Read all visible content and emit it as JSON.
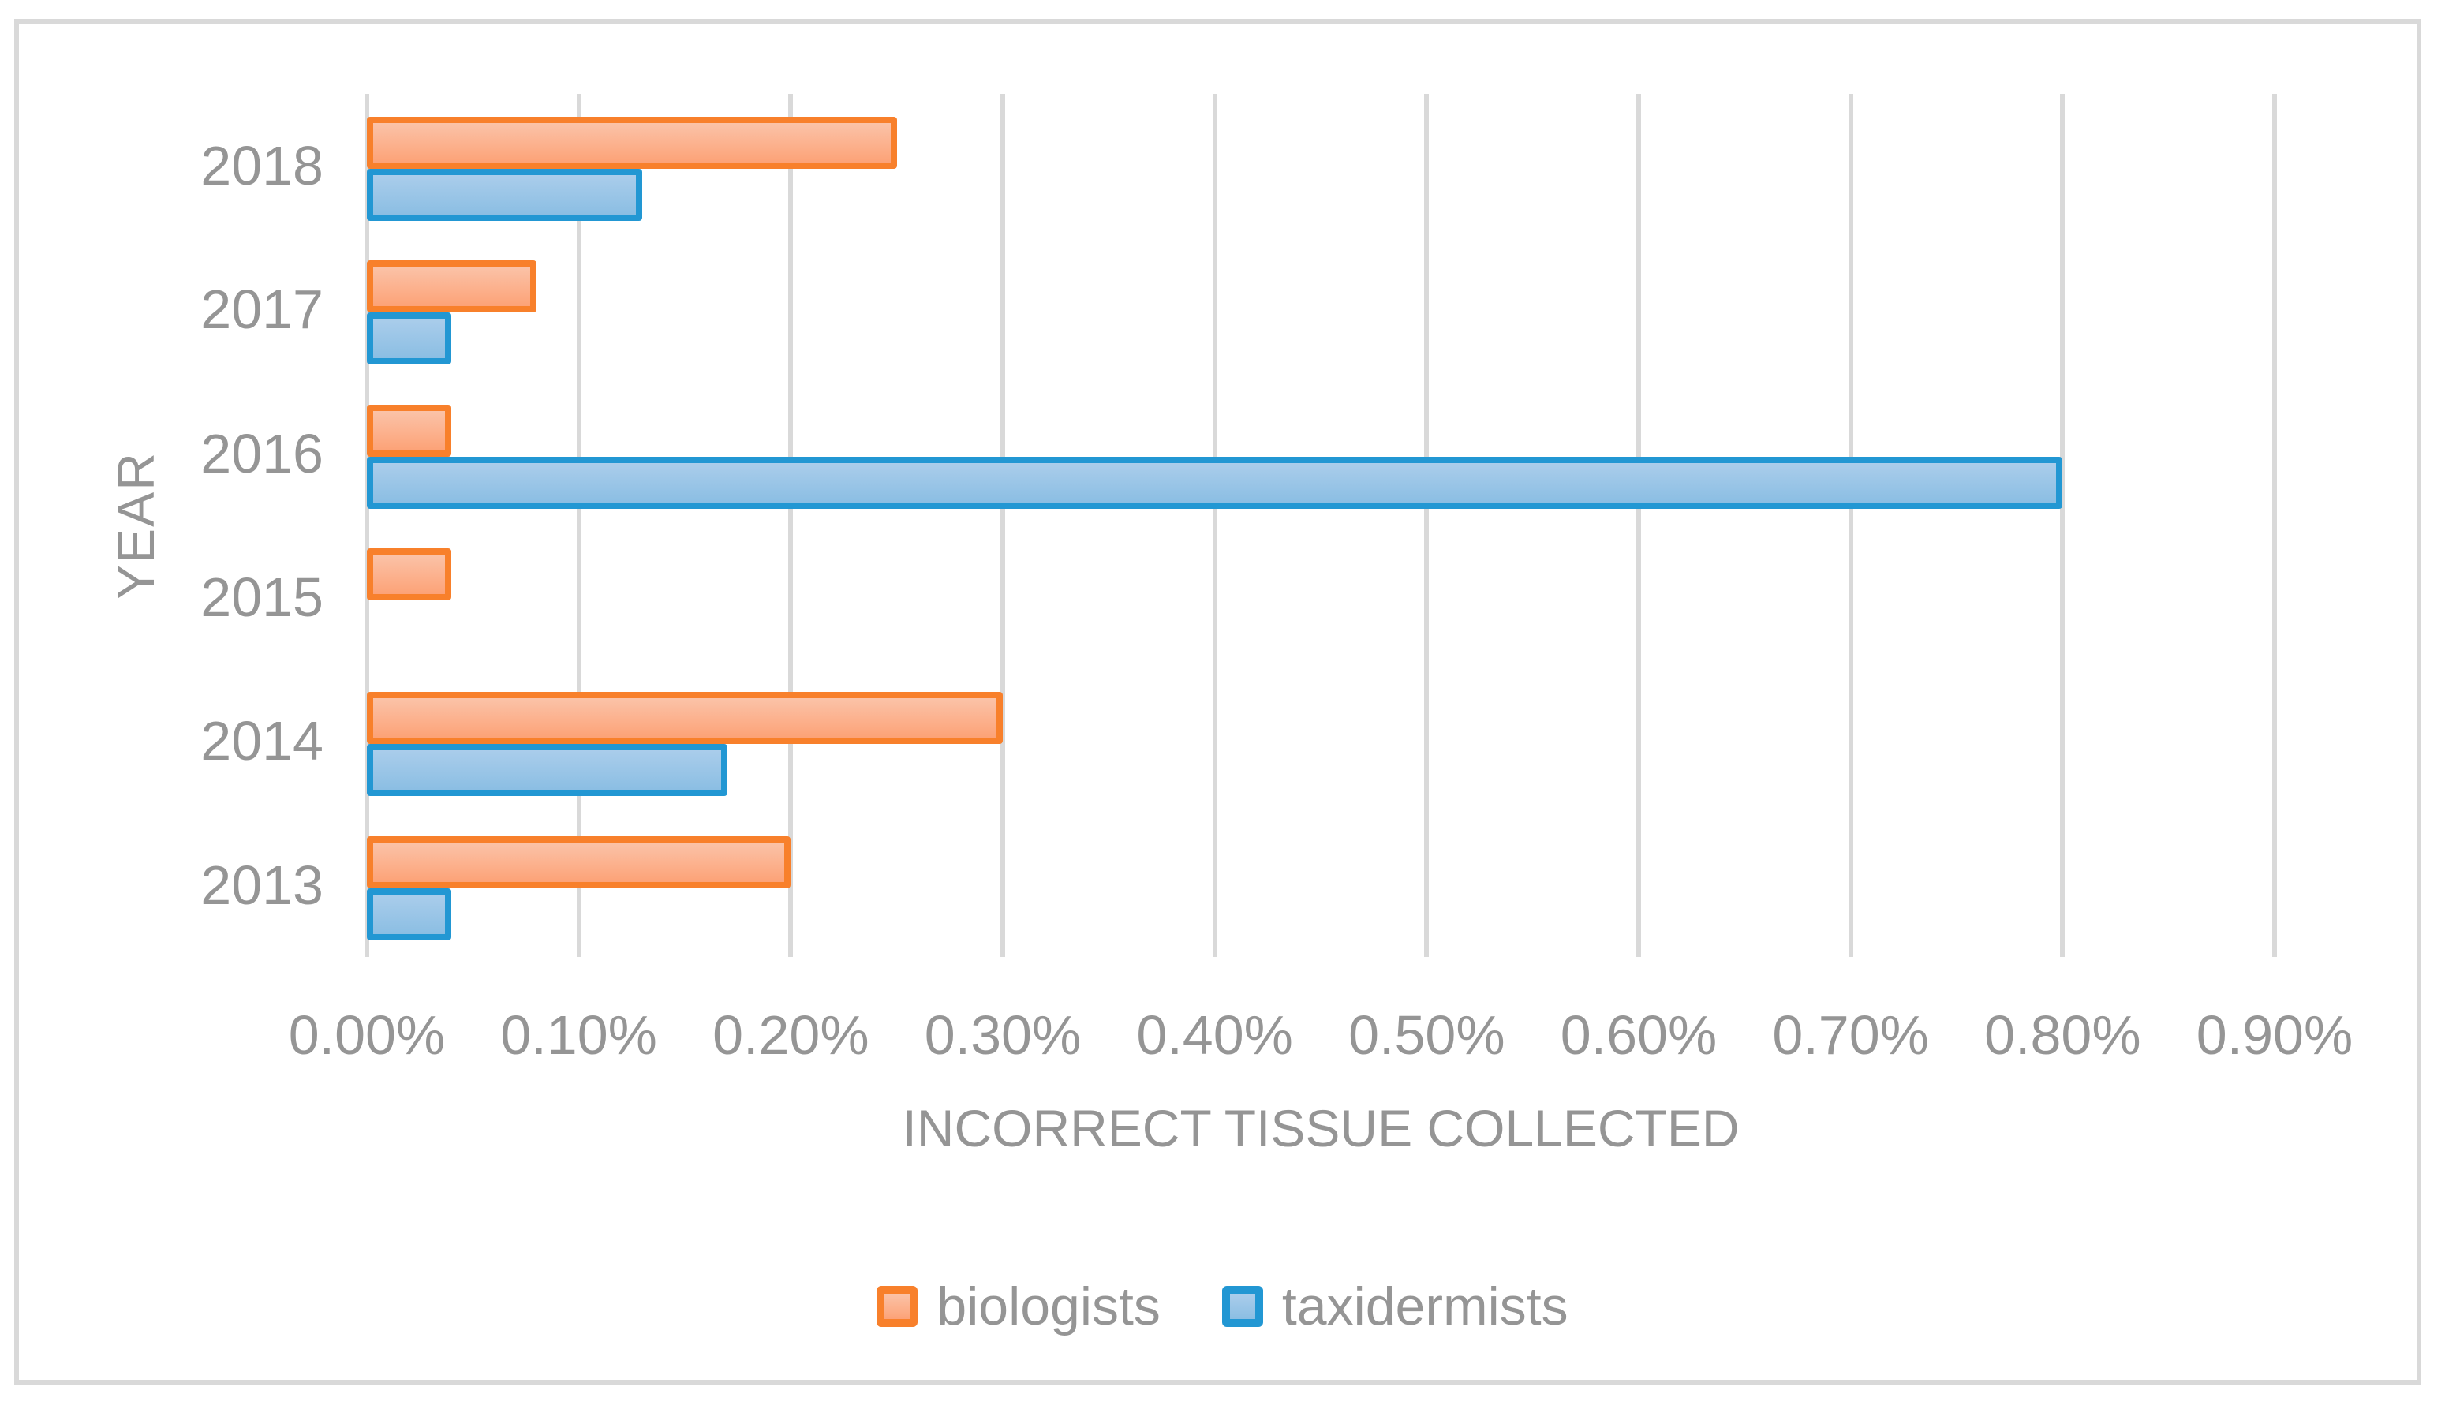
{
  "chart_data": {
    "type": "bar",
    "orientation": "horizontal",
    "title": "",
    "xlabel": "INCORRECT TISSUE COLLECTED",
    "ylabel": "YEAR",
    "categories": [
      "2018",
      "2017",
      "2016",
      "2015",
      "2014",
      "2013"
    ],
    "series": [
      {
        "name": "biologists",
        "values": [
          0.25,
          0.08,
          0.04,
          0.04,
          0.3,
          0.2
        ],
        "border_color": "#F8802B",
        "fill_top": "#FBC3A8",
        "fill_bottom": "#FCA277"
      },
      {
        "name": "taxidermists",
        "values": [
          0.13,
          0.04,
          0.8,
          0.0,
          0.17,
          0.04
        ],
        "border_color": "#2297D3",
        "fill_top": "#AACDEB",
        "fill_bottom": "#8BBEE3"
      }
    ],
    "value_unit": "percent",
    "xlim": [
      0,
      0.9
    ],
    "x_ticks": [
      "0.00%",
      "0.10%",
      "0.20%",
      "0.30%",
      "0.40%",
      "0.50%",
      "0.60%",
      "0.70%",
      "0.80%",
      "0.90%"
    ],
    "grid": "vertical",
    "gridline_color": "#D9D9D9",
    "legend_position": "bottom-center",
    "text_color": "#959595",
    "frame_border_color": "#D9D9D9"
  }
}
